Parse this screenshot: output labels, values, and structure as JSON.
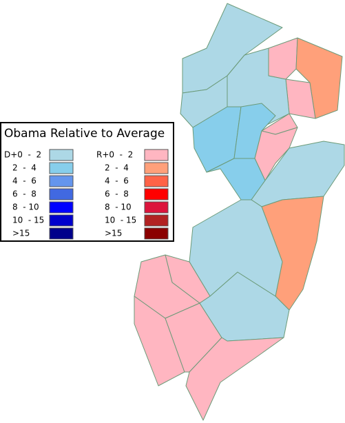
{
  "legend": {
    "title": "Obama Relative to Average",
    "democrat": [
      {
        "label": "D+0  -  2",
        "color": "#add8e6"
      },
      {
        "label": "2  -  4",
        "color": "#87ceeb"
      },
      {
        "label": "4  -  6",
        "color": "#6495ed"
      },
      {
        "label": "6  -  8",
        "color": "#4169e1"
      },
      {
        "label": "8  - 10",
        "color": "#0000ff"
      },
      {
        "label": "10  - 15",
        "color": "#0000cd"
      },
      {
        "label": ">15",
        "color": "#00008b"
      }
    ],
    "republican": [
      {
        "label": "R+0  -  2",
        "color": "#ffb6c1"
      },
      {
        "label": "2  -  4",
        "color": "#ffa07a"
      },
      {
        "label": "4  -  6",
        "color": "#ff6347"
      },
      {
        "label": "6  -  8",
        "color": "#ff0000"
      },
      {
        "label": "8  - 10",
        "color": "#dc143c"
      },
      {
        "label": "10  - 15",
        "color": "#b22222"
      },
      {
        "label": ">15",
        "color": "#8b0000"
      }
    ]
  }
}
